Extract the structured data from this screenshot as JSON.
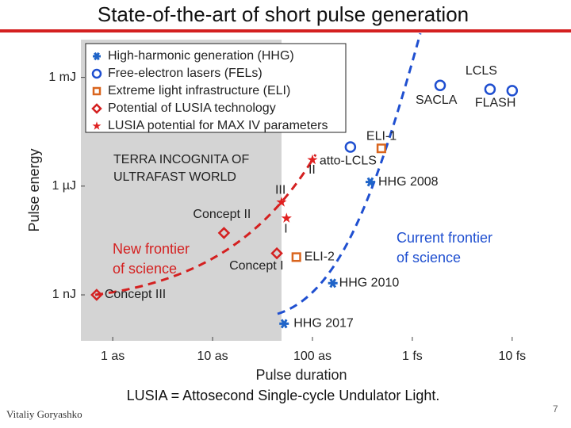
{
  "title": "State-of-the-art of short pulse generation",
  "chart_data": {
    "type": "scatter",
    "xlabel": "Pulse duration",
    "ylabel": "Pulse energy",
    "xscale": "log",
    "yscale": "log",
    "xlim": [
      4.8e-19,
      1.5e-14
    ],
    "ylim": [
      5.4e-11,
      0.011
    ],
    "xticks": [
      {
        "value": 1e-18,
        "label": "1 as"
      },
      {
        "value": 1e-17,
        "label": "10 as"
      },
      {
        "value": 1e-16,
        "label": "100 as"
      },
      {
        "value": 1e-15,
        "label": "1 fs"
      },
      {
        "value": 1e-14,
        "label": "10 fs"
      }
    ],
    "yticks": [
      {
        "value": 0.001,
        "label": "1 mJ"
      },
      {
        "value": 1e-06,
        "label": "1 µJ"
      },
      {
        "value": 1e-09,
        "label": "1 nJ"
      }
    ],
    "legend": "upper left",
    "series": [
      {
        "name": "High-harmonic generation (HHG)",
        "color": "#1f64c8",
        "marker": "asterisk",
        "x": [
          3.8e-16,
          1.6e-16,
          5.2e-17
        ],
        "values": [
          1.3e-06,
          2.1e-09,
          1.6e-10
        ],
        "point_labels": [
          "HHG 2008",
          "HHG 2010",
          "HHG 2017"
        ]
      },
      {
        "name": "Free-electron lasers (FELs)",
        "color": "#1f4fd0",
        "marker": "circle",
        "x": [
          2.4e-16,
          1.9e-15,
          6e-15,
          1e-14
        ],
        "values": [
          1.2e-05,
          0.0006,
          0.00047,
          0.00043
        ],
        "point_labels": [
          "atto-LCLS",
          "SACLA",
          "LCLS",
          "FLASH"
        ]
      },
      {
        "name": "Extreme light infrastructure (ELI)",
        "color": "#d9651e",
        "marker": "square",
        "x": [
          4.9e-16,
          6.9e-17
        ],
        "values": [
          1.1e-05,
          1.1e-08
        ],
        "point_labels": [
          "ELI-1",
          "ELI-2"
        ]
      },
      {
        "name": "Potential of LUSIA technology",
        "color": "#d42020",
        "marker": "diamond",
        "x": [
          1.3e-17,
          4.4e-17,
          6.9e-19
        ],
        "values": [
          5.1e-08,
          1.4e-08,
          1e-09
        ],
        "point_labels": [
          "Concept II",
          "Concept I",
          "Concept III"
        ]
      },
      {
        "name": "LUSIA potential for MAX IV parameters",
        "color": "#e02020",
        "marker": "star",
        "x": [
          5.5e-17,
          4.9e-17,
          1e-16
        ],
        "values": [
          1.3e-07,
          3.6e-07,
          5.3e-06
        ],
        "point_labels": [
          "I",
          "III",
          "II"
        ]
      }
    ],
    "annotations": {
      "terra_incognita": [
        "TERRA INCOGNITA OF",
        "ULTRAFAST WORLD"
      ],
      "new_frontier": [
        "New frontier",
        "of science"
      ],
      "current_frontier": [
        "Current frontier",
        "of science"
      ]
    }
  },
  "caption": "LUSIA = Attosecond Single-cycle Undulator Light.",
  "author": "Vitaliy Goryashko",
  "page_number": 7
}
